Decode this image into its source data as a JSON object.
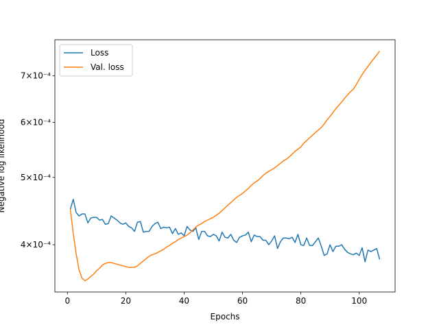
{
  "chart_data": {
    "type": "line",
    "x_label": "Epochs",
    "y_label": "Negative log likelihood",
    "x": [
      1,
      2,
      3,
      4,
      5,
      6,
      7,
      8,
      9,
      10,
      11,
      12,
      13,
      14,
      15,
      16,
      17,
      18,
      19,
      20,
      21,
      22,
      23,
      24,
      25,
      26,
      27,
      28,
      29,
      30,
      31,
      32,
      33,
      34,
      35,
      36,
      37,
      38,
      39,
      40,
      41,
      42,
      43,
      44,
      45,
      46,
      47,
      48,
      49,
      50,
      51,
      52,
      53,
      54,
      55,
      56,
      57,
      58,
      59,
      60,
      61,
      62,
      63,
      64,
      65,
      66,
      67,
      68,
      69,
      70,
      71,
      72,
      73,
      74,
      75,
      76,
      77,
      78,
      79,
      80,
      81,
      82,
      83,
      84,
      85,
      86,
      87,
      88,
      89,
      90,
      91,
      92,
      93,
      94,
      95,
      96,
      97,
      98,
      99,
      100,
      101,
      102,
      103,
      104,
      105,
      106,
      107
    ],
    "series": [
      {
        "name": "Loss",
        "color": "#1f77b4",
        "values": [
          0.00045,
          0.000465,
          0.000445,
          0.00044,
          0.000443,
          0.000443,
          0.00043,
          0.000437,
          0.000438,
          0.000438,
          0.000434,
          0.000435,
          0.000428,
          0.000429,
          0.00044,
          0.000437,
          0.000434,
          0.00043,
          0.000428,
          0.00043,
          0.000425,
          0.000423,
          0.000418,
          0.000431,
          0.000432,
          0.000417,
          0.000418,
          0.000418,
          0.000425,
          0.000429,
          0.000431,
          0.000422,
          0.000424,
          0.000423,
          0.000424,
          0.000415,
          0.000422,
          0.000414,
          0.000416,
          0.000412,
          0.000425,
          0.00042,
          0.000418,
          0.000423,
          0.000407,
          0.000418,
          0.000418,
          0.000412,
          0.000411,
          0.000414,
          0.000412,
          0.000405,
          0.000417,
          0.00041,
          0.000409,
          0.000414,
          0.000406,
          0.000403,
          0.00041,
          0.000412,
          0.000413,
          0.000417,
          0.000404,
          0.000413,
          0.000411,
          0.000411,
          0.000406,
          0.000406,
          0.0004,
          0.000405,
          0.000412,
          0.000395,
          0.000404,
          0.000409,
          0.000409,
          0.000408,
          0.00041,
          0.000403,
          0.000414,
          0.0004,
          0.000399,
          0.000409,
          0.000399,
          0.000399,
          0.000404,
          0.000409,
          0.000398,
          0.000386,
          0.000388,
          0.0004,
          0.000391,
          0.000398,
          0.000398,
          0.0004,
          0.000394,
          0.00039,
          0.000388,
          0.000387,
          0.000389,
          0.000386,
          0.000396,
          0.000378,
          0.000393,
          0.000391,
          0.000393,
          0.000395,
          0.000381
        ]
      },
      {
        "name": "Val. loss",
        "color": "#ff7f0e",
        "values": [
          0.00045,
          0.000415,
          0.000388,
          0.000368,
          0.000358,
          0.000355,
          0.000357,
          0.00036,
          0.000363,
          0.000367,
          0.00037,
          0.000374,
          0.000376,
          0.000377,
          0.000377,
          0.000376,
          0.000375,
          0.000374,
          0.000373,
          0.000372,
          0.000371,
          0.000371,
          0.000371,
          0.000373,
          0.000376,
          0.000379,
          0.000382,
          0.000385,
          0.000387,
          0.000388,
          0.00039,
          0.000392,
          0.000394,
          0.000397,
          0.000399,
          0.000402,
          0.000404,
          0.000407,
          0.000409,
          0.000411,
          0.000413,
          0.000416,
          0.00042,
          0.000424,
          0.000427,
          0.000429,
          0.000432,
          0.000434,
          0.000436,
          0.000438,
          0.000441,
          0.000444,
          0.000448,
          0.000452,
          0.000456,
          0.00046,
          0.000464,
          0.000468,
          0.000471,
          0.000474,
          0.000478,
          0.000482,
          0.000487,
          0.000491,
          0.000494,
          0.000498,
          0.000503,
          0.000507,
          0.00051,
          0.000513,
          0.000516,
          0.00052,
          0.000524,
          0.000528,
          0.000531,
          0.000535,
          0.00054,
          0.000545,
          0.000549,
          0.000553,
          0.00056,
          0.000565,
          0.00057,
          0.000575,
          0.00058,
          0.000585,
          0.00059,
          0.000597,
          0.000605,
          0.000612,
          0.00062,
          0.000628,
          0.000635,
          0.000642,
          0.00065,
          0.000657,
          0.000664,
          0.00067,
          0.00068,
          0.000692,
          0.000703,
          0.000713,
          0.000722,
          0.000732,
          0.000741,
          0.00075,
          0.00076
        ]
      }
    ],
    "xlim": [
      -4.3,
      112.3
    ],
    "xticks": [
      0,
      20,
      40,
      60,
      80,
      100
    ],
    "ylim": [
      0.000342,
      0.000789
    ],
    "yticks": [
      {
        "value": 0.0004,
        "label": "4×10⁻⁴"
      },
      {
        "value": 0.0005,
        "label": "5×10⁻⁴"
      },
      {
        "value": 0.0006,
        "label": "6×10⁻⁴"
      },
      {
        "value": 0.0007,
        "label": "7×10⁻⁴"
      }
    ],
    "y_scale": "log",
    "legend": "upper left"
  }
}
